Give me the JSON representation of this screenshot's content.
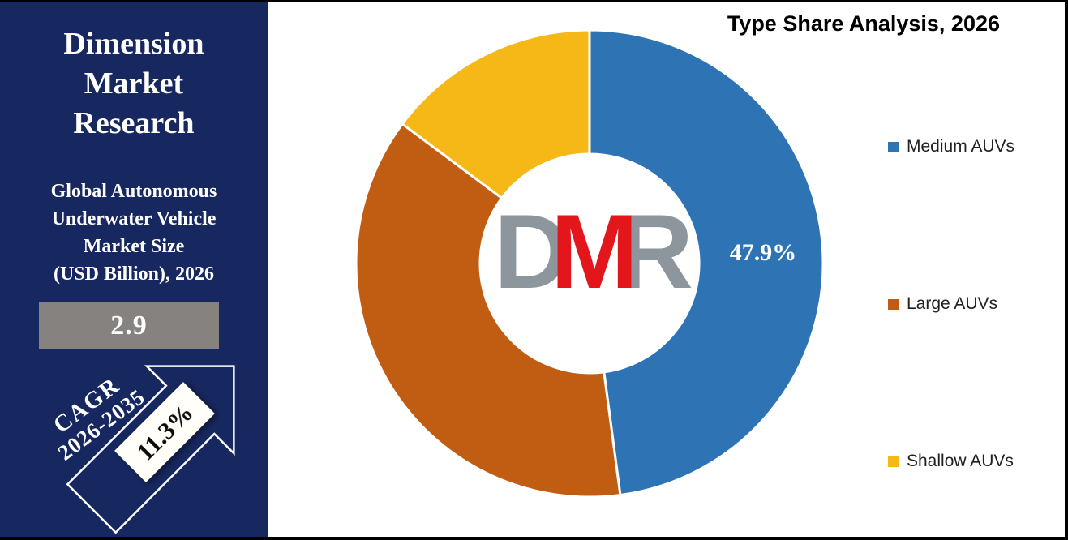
{
  "sidebar": {
    "brand_lines": [
      "Dimension",
      "Market",
      "Research"
    ],
    "market_size_label_lines": [
      "Global Autonomous",
      "Underwater Vehicle",
      "Market Size",
      "(USD Billion), 2026"
    ],
    "market_size_value": "2.9",
    "cagr": {
      "label": "CAGR",
      "period": "2026-2035",
      "value": "11.3%"
    }
  },
  "logo": {
    "letters": [
      "D",
      "M",
      "R"
    ],
    "gray": "#8C969C",
    "red": "#E3161B"
  },
  "chart_data": {
    "type": "pie",
    "subtype": "donut",
    "title": "Type Share Analysis, 2026",
    "categories": [
      "Medium AUVs",
      "Large AUVs",
      "Shallow AUVs"
    ],
    "values": [
      47.9,
      37.3,
      14.8
    ],
    "colors": [
      "#2E74B5",
      "#C05D13",
      "#F5B817"
    ],
    "data_labels": [
      "47.9%",
      "",
      ""
    ],
    "start_angle_deg": 0,
    "direction": "clockwise",
    "inner_radius_ratio": 0.47,
    "legend_position": "right",
    "slice_border_color": "#FFFFFF"
  },
  "colors": {
    "sidebar_bg": "#172860",
    "value_box_bg": "#868280",
    "panel_bg": "#FFFFFF",
    "frame": "#000000"
  }
}
